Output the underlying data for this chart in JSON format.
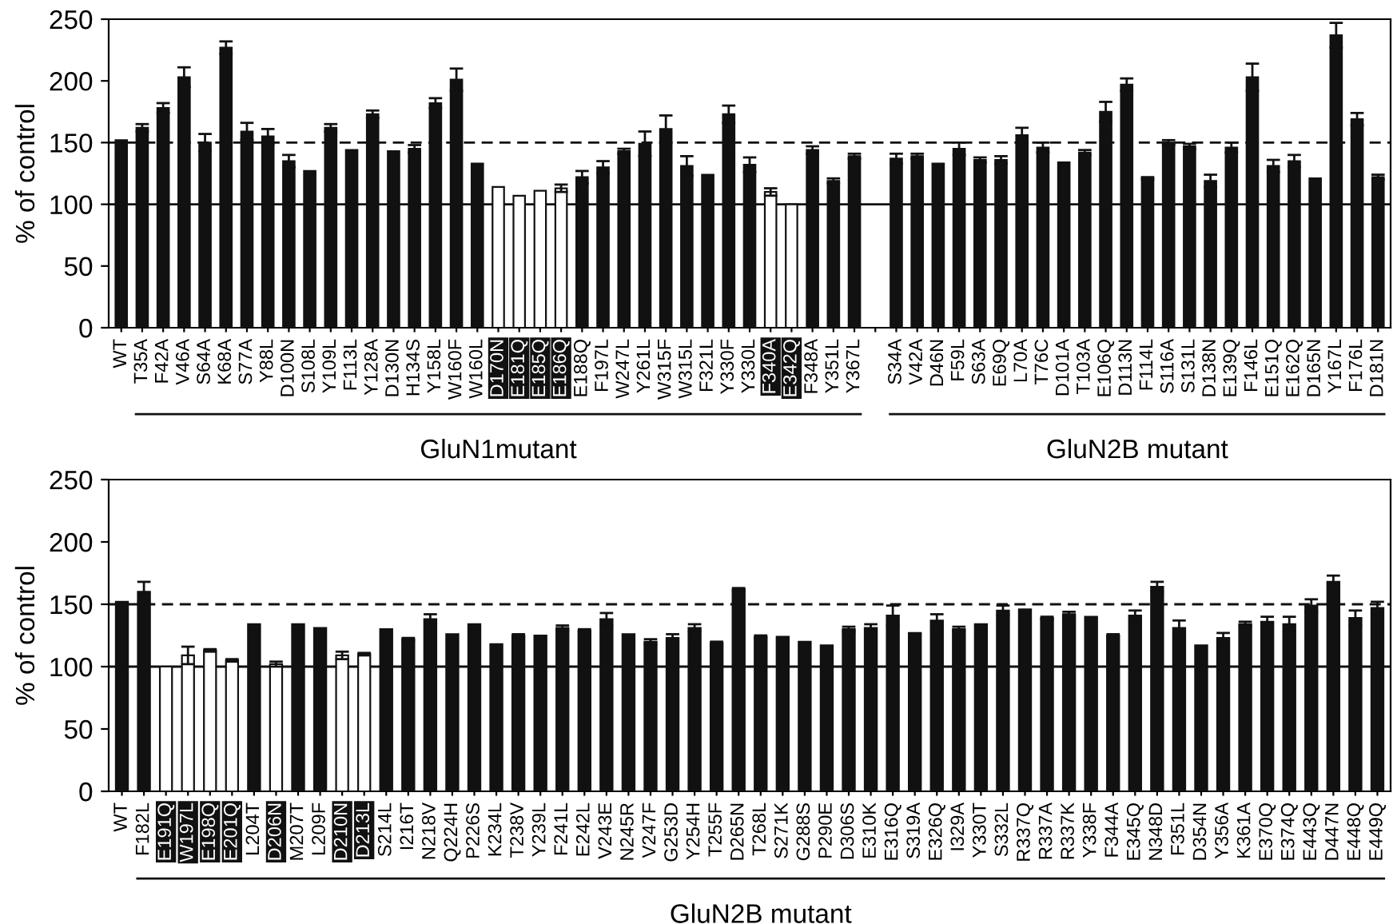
{
  "chart_data": [
    {
      "type": "bar",
      "ylabel": "% of control",
      "ylim": [
        0,
        250
      ],
      "yticks": [
        0,
        50,
        100,
        150,
        200,
        250
      ],
      "categories": [
        "WT",
        "T35A",
        "F42A",
        "V46A",
        "S64A",
        "K68A",
        "S77A",
        "Y88L",
        "D100N",
        "S108L",
        "Y109L",
        "F113L",
        "Y128A",
        "D130N",
        "H134S",
        "Y158L",
        "W160F",
        "W160L",
        "D170N",
        "E181Q",
        "E185Q",
        "E186Q",
        "E188Q",
        "F197L",
        "W247L",
        "Y261L",
        "W315F",
        "W315L",
        "F321L",
        "Y330F",
        "Y330L",
        "F340A",
        "E342Q",
        "F348A",
        "Y351L",
        "Y367L",
        null,
        "S34A",
        "V42A",
        "D46N",
        "F59L",
        "S63A",
        "E69Q",
        "L70A",
        "T76C",
        "D101A",
        "T103A",
        "E106Q",
        "D113N",
        "F114L",
        "S116A",
        "S131L",
        "D138N",
        "E139Q",
        "F146L",
        "E151Q",
        "E162Q",
        "D165N",
        "Y167L",
        "F176L",
        "D181N"
      ],
      "values": [
        152,
        162,
        178,
        203,
        150,
        227,
        159,
        155,
        135,
        127,
        162,
        144,
        173,
        143,
        145,
        182,
        201,
        133,
        114,
        107,
        111,
        113,
        122,
        130,
        143,
        149,
        161,
        131,
        124,
        173,
        132,
        110,
        100,
        144,
        119,
        139,
        null,
        137,
        139,
        133,
        145,
        136,
        136,
        156,
        146,
        134,
        142,
        175,
        197,
        121,
        150,
        147,
        119,
        146,
        203,
        131,
        135,
        121,
        237,
        169,
        122
      ],
      "errors": [
        null,
        3,
        4,
        8,
        7,
        5,
        7,
        6,
        5,
        null,
        3,
        null,
        3,
        null,
        3,
        4,
        9,
        null,
        null,
        null,
        null,
        3,
        5,
        5,
        2,
        10,
        11,
        8,
        null,
        7,
        6,
        3,
        null,
        3,
        2,
        2,
        null,
        4,
        2,
        null,
        5,
        2,
        3,
        6,
        4,
        null,
        2,
        8,
        5,
        1,
        2,
        2,
        5,
        4,
        11,
        5,
        5,
        null,
        10,
        5,
        2
      ],
      "colors": [
        "#111111",
        "#111111",
        "#111111",
        "#111111",
        "#111111",
        "#111111",
        "#111111",
        "#111111",
        "#111111",
        "#111111",
        "#111111",
        "#111111",
        "#111111",
        "#111111",
        "#111111",
        "#111111",
        "#111111",
        "#111111",
        "#ffffff",
        "#ffffff",
        "#ffffff",
        "#ffffff",
        "#111111",
        "#111111",
        "#111111",
        "#111111",
        "#111111",
        "#111111",
        "#111111",
        "#111111",
        "#111111",
        "#ffffff",
        "#ffffff",
        "#111111",
        "#111111",
        "#111111",
        null,
        "#111111",
        "#111111",
        "#111111",
        "#111111",
        "#111111",
        "#111111",
        "#111111",
        "#111111",
        "#111111",
        "#111111",
        "#111111",
        "#111111",
        "#111111",
        "#111111",
        "#111111",
        "#111111",
        "#111111",
        "#111111",
        "#111111",
        "#111111",
        "#111111",
        "#111111",
        "#111111",
        "#111111"
      ],
      "ref_lines": [
        {
          "axis": "y",
          "value": 100,
          "line_style": "solid"
        },
        {
          "axis": "y",
          "value": 150,
          "line_style": "dashed"
        }
      ],
      "annotations": [
        "GluN1mutant",
        "GluN2B mutant"
      ],
      "grid": false,
      "legend": false
    },
    {
      "type": "bar",
      "ylabel": "% of control",
      "ylim": [
        0,
        250
      ],
      "yticks": [
        0,
        50,
        100,
        150,
        200,
        250
      ],
      "categories": [
        "WT",
        "F182L",
        "E191Q",
        "W197L",
        "E198Q",
        "E201Q",
        "L204T",
        "D206N",
        "M207T",
        "L209F",
        "D210N",
        "D213L",
        "S214L",
        "I216T",
        "N218V",
        "Q224H",
        "P226S",
        "K234L",
        "T238V",
        "Y239L",
        "F241L",
        "E242L",
        "V243E",
        "N245R",
        "V247F",
        "G253D",
        "Y254H",
        "T255F",
        "D265N",
        "T268L",
        "S271K",
        "G288S",
        "P290E",
        "D306S",
        "E310K",
        "E316Q",
        "S319A",
        "E326Q",
        "I329A",
        "Y330T",
        "S332L",
        "R337Q",
        "R337A",
        "R337K",
        "Y338F",
        "F344A",
        "E345Q",
        "N348D",
        "F351L",
        "D354N",
        "Y356A",
        "K361A",
        "E370Q",
        "E374Q",
        "E443Q",
        "D447N",
        "E448Q",
        "E449Q"
      ],
      "values": [
        152,
        160,
        100,
        109,
        113,
        105,
        134,
        102,
        134,
        131,
        109,
        110,
        130,
        122,
        138,
        126,
        134,
        118,
        125,
        125,
        131,
        129,
        138,
        126,
        120,
        123,
        131,
        119,
        162,
        124,
        124,
        120,
        117,
        130,
        131,
        141,
        127,
        137,
        130,
        134,
        145,
        146,
        139,
        142,
        140,
        125,
        141,
        164,
        131,
        117,
        123,
        134,
        136,
        134,
        149,
        168,
        139,
        147
      ],
      "errors": [
        null,
        8,
        null,
        7,
        1,
        1,
        null,
        2,
        null,
        null,
        3,
        1,
        null,
        1,
        4,
        null,
        null,
        null,
        1,
        null,
        2,
        1,
        5,
        null,
        2,
        3,
        3,
        1,
        1,
        1,
        null,
        null,
        null,
        2,
        3,
        8,
        null,
        5,
        2,
        null,
        4,
        null,
        1,
        2,
        null,
        1,
        4,
        4,
        6,
        null,
        4,
        2,
        4,
        6,
        5,
        5,
        6,
        5
      ],
      "colors": [
        "#111111",
        "#111111",
        "#ffffff",
        "#ffffff",
        "#ffffff",
        "#ffffff",
        "#111111",
        "#ffffff",
        "#111111",
        "#111111",
        "#ffffff",
        "#ffffff",
        "#111111",
        "#111111",
        "#111111",
        "#111111",
        "#111111",
        "#111111",
        "#111111",
        "#111111",
        "#111111",
        "#111111",
        "#111111",
        "#111111",
        "#111111",
        "#111111",
        "#111111",
        "#111111",
        "#111111",
        "#111111",
        "#111111",
        "#111111",
        "#111111",
        "#111111",
        "#111111",
        "#111111",
        "#111111",
        "#111111",
        "#111111",
        "#111111",
        "#111111",
        "#111111",
        "#111111",
        "#111111",
        "#111111",
        "#111111",
        "#111111",
        "#111111",
        "#111111",
        "#111111",
        "#111111",
        "#111111",
        "#111111",
        "#111111",
        "#111111",
        "#111111",
        "#111111",
        "#111111"
      ],
      "ref_lines": [
        {
          "axis": "y",
          "value": 100,
          "line_style": "solid"
        },
        {
          "axis": "y",
          "value": 150,
          "line_style": "dashed"
        }
      ],
      "annotations": [
        "GluN2B mutant"
      ],
      "grid": false,
      "legend": false
    }
  ]
}
